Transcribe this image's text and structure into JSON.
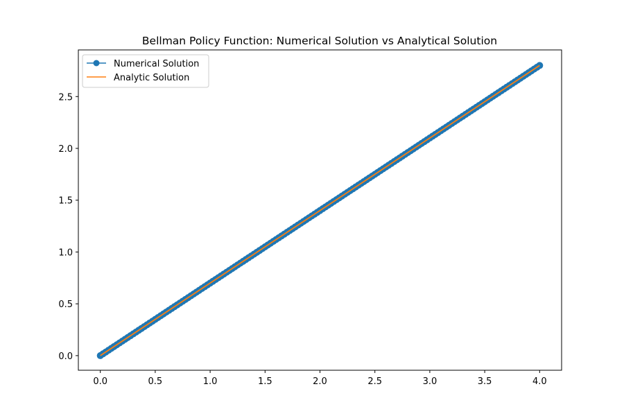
{
  "chart_data": {
    "type": "line",
    "title": "Bellman Policy Function: Numerical Solution vs Analytical Solution",
    "xlabel": "",
    "ylabel": "",
    "xlim": [
      -0.2,
      4.2
    ],
    "ylim": [
      -0.141,
      2.95
    ],
    "xticks": [
      0.0,
      0.5,
      1.0,
      1.5,
      2.0,
      2.5,
      3.0,
      3.5,
      4.0
    ],
    "xtick_labels": [
      "0.0",
      "0.5",
      "1.0",
      "1.5",
      "2.0",
      "2.5",
      "3.0",
      "3.5",
      "4.0"
    ],
    "yticks": [
      0.0,
      0.5,
      1.0,
      1.5,
      2.0,
      2.5
    ],
    "ytick_labels": [
      "0.0",
      "0.5",
      "1.0",
      "1.5",
      "2.0",
      "2.5"
    ],
    "grid": false,
    "legend_position": "upper-left",
    "series": [
      {
        "name": "Numerical Solution",
        "style": "line-with-circle-markers",
        "color": "#1f77b4",
        "x": [
          0.0,
          0.2,
          0.4,
          0.6,
          0.8,
          1.0,
          1.2,
          1.4,
          1.6,
          1.8,
          2.0,
          2.2,
          2.4,
          2.6,
          2.8,
          3.0,
          3.2,
          3.4,
          3.6,
          3.8,
          4.0
        ],
        "y": [
          0.0,
          0.14,
          0.28,
          0.42,
          0.56,
          0.7,
          0.84,
          0.98,
          1.12,
          1.26,
          1.4,
          1.54,
          1.68,
          1.82,
          1.96,
          2.1,
          2.24,
          2.38,
          2.52,
          2.66,
          2.8
        ]
      },
      {
        "name": "Analytic Solution",
        "style": "line",
        "color": "#ff7f0e",
        "x": [
          0.0,
          4.0
        ],
        "y": [
          0.0,
          2.8
        ]
      }
    ]
  }
}
